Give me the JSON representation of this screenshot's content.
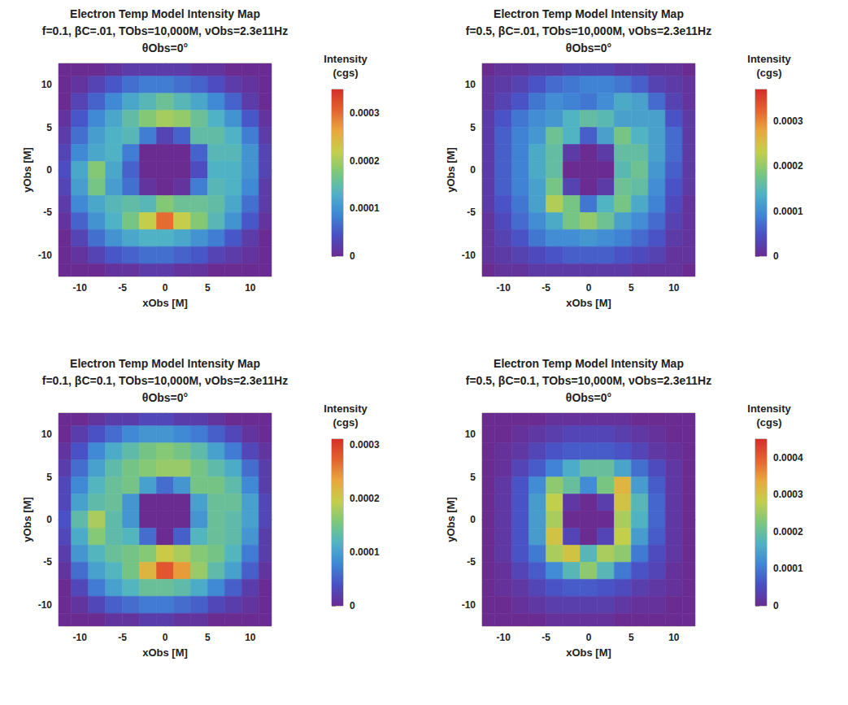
{
  "chart_data": [
    {
      "type": "heatmap",
      "title": "Electron Temp Model Intensity Map",
      "subtitle": "f=0.1, βC=.01, TObs=10,000M, νObs=2.3e11Hz",
      "panel_title": "θObs=0°",
      "x_label": "xObs [M]",
      "y_label": "yObs [M]",
      "xlim": [
        -12.5,
        12.5
      ],
      "ylim": [
        -12.5,
        12.5
      ],
      "xticks": [
        -10,
        -5,
        0,
        5,
        10
      ],
      "yticks": [
        -10,
        -5,
        0,
        5,
        10
      ],
      "x": [
        -12,
        -10,
        -8,
        -6,
        -4,
        -2,
        0,
        2,
        4,
        6,
        8,
        10,
        12
      ],
      "y": [
        12,
        10,
        8,
        6,
        4,
        2,
        0,
        -2,
        -4,
        -6,
        -8,
        -10,
        -12
      ],
      "cells": [
        [
          0,
          0,
          0,
          1e-05,
          2e-05,
          2e-05,
          2e-05,
          2e-05,
          1e-05,
          1e-05,
          0,
          0,
          0
        ],
        [
          0,
          1e-05,
          3e-05,
          5e-05,
          7e-05,
          8e-05,
          8e-05,
          7e-05,
          6e-05,
          4e-05,
          2e-05,
          1e-05,
          0
        ],
        [
          0,
          3e-05,
          6e-05,
          9e-05,
          0.00012,
          0.00014,
          0.00016,
          0.00014,
          0.00012,
          9e-05,
          6e-05,
          2e-05,
          0
        ],
        [
          1e-05,
          5e-05,
          9e-05,
          0.00012,
          0.00015,
          0.00018,
          0.0002,
          0.00019,
          0.00016,
          0.00013,
          0.0001,
          5e-05,
          1e-05
        ],
        [
          2e-05,
          7e-05,
          0.00011,
          0.00013,
          0.00014,
          8e-05,
          3e-05,
          6e-05,
          0.00015,
          0.00015,
          0.00013,
          8e-05,
          2e-05
        ],
        [
          3e-05,
          9e-05,
          0.00012,
          0.00013,
          8e-05,
          0,
          0,
          0,
          6e-05,
          0.00014,
          0.00014,
          0.0001,
          3e-05
        ],
        [
          4e-05,
          0.00012,
          0.00018,
          0.00012,
          6e-05,
          0,
          0,
          0,
          4e-05,
          0.00013,
          0.00013,
          0.0001,
          3e-05
        ],
        [
          3e-05,
          0.00011,
          0.00017,
          0.00011,
          7e-05,
          1e-05,
          0,
          1e-05,
          8e-05,
          0.00014,
          0.00013,
          9e-05,
          2e-05
        ],
        [
          2e-05,
          9e-05,
          0.00012,
          0.00014,
          0.00015,
          0.00014,
          0.00018,
          0.00016,
          0.00016,
          0.00015,
          0.00012,
          7e-05,
          2e-05
        ],
        [
          1e-05,
          6e-05,
          0.0001,
          0.00013,
          0.00017,
          0.00022,
          0.0003,
          0.00022,
          0.00018,
          0.00014,
          0.0001,
          5e-05,
          1e-05
        ],
        [
          0,
          3e-05,
          7e-05,
          0.0001,
          0.00012,
          0.00013,
          0.00013,
          0.00012,
          0.0001,
          8e-05,
          5e-05,
          2e-05,
          0
        ],
        [
          0,
          1e-05,
          3e-05,
          5e-05,
          6e-05,
          7e-05,
          7e-05,
          6e-05,
          5e-05,
          3e-05,
          2e-05,
          1e-05,
          0
        ],
        [
          0,
          0,
          0,
          1e-05,
          1e-05,
          2e-05,
          2e-05,
          1e-05,
          1e-05,
          0,
          0,
          0,
          0
        ]
      ],
      "colorbar": {
        "title": "Intensity (cgs)",
        "range": [
          0,
          0.00035
        ],
        "ticks": [
          0,
          0.0001,
          0.0002,
          0.0003
        ]
      }
    },
    {
      "type": "heatmap",
      "title": "Electron Temp Model Intensity Map",
      "subtitle": "f=0.5, βC=.01, TObs=10,000M, νObs=2.3e11Hz",
      "panel_title": "θObs=0°",
      "x_label": "xObs [M]",
      "y_label": "yObs [M]",
      "xlim": [
        -12.5,
        12.5
      ],
      "ylim": [
        -12.5,
        12.5
      ],
      "xticks": [
        -10,
        -5,
        0,
        5,
        10
      ],
      "yticks": [
        -10,
        -5,
        0,
        5,
        10
      ],
      "x": [
        -12,
        -10,
        -8,
        -6,
        -4,
        -2,
        0,
        2,
        4,
        6,
        8,
        10,
        12
      ],
      "y": [
        12,
        10,
        8,
        6,
        4,
        2,
        0,
        -2,
        -4,
        -6,
        -8,
        -10,
        -12
      ],
      "cells": [
        [
          0,
          1e-05,
          1e-05,
          2e-05,
          2e-05,
          3e-05,
          3e-05,
          3e-05,
          2e-05,
          2e-05,
          1e-05,
          1e-05,
          0
        ],
        [
          1e-05,
          2e-05,
          3e-05,
          5e-05,
          7e-05,
          8e-05,
          9e-05,
          9e-05,
          8e-05,
          6e-05,
          3e-05,
          2e-05,
          1e-05
        ],
        [
          1e-05,
          3e-05,
          5e-05,
          8e-05,
          0.0001,
          9e-05,
          8e-05,
          0.0001,
          0.00013,
          0.00012,
          7e-05,
          3e-05,
          1e-05
        ],
        [
          2e-05,
          5e-05,
          8e-05,
          0.0001,
          0.00011,
          0.00014,
          0.00016,
          0.00015,
          0.00012,
          0.00012,
          0.00012,
          5e-05,
          2e-05
        ],
        [
          2e-05,
          6e-05,
          9e-05,
          0.00011,
          0.00017,
          0.00014,
          6e-05,
          0.00012,
          0.00018,
          0.00014,
          0.00012,
          7e-05,
          2e-05
        ],
        [
          2e-05,
          6e-05,
          9e-05,
          0.00013,
          0.00016,
          2e-05,
          0,
          2e-05,
          0.00016,
          0.00016,
          0.00012,
          7e-05,
          2e-05
        ],
        [
          2e-05,
          6e-05,
          9e-05,
          0.00013,
          0.00016,
          0,
          0,
          0,
          0.00015,
          0.00017,
          0.00011,
          6e-05,
          2e-05
        ],
        [
          2e-05,
          6e-05,
          9e-05,
          0.00012,
          0.00018,
          3e-05,
          0,
          2e-05,
          0.00017,
          0.00016,
          0.0001,
          5e-05,
          2e-05
        ],
        [
          2e-05,
          5e-05,
          8e-05,
          0.00012,
          0.00022,
          0.00018,
          8e-05,
          0.00014,
          0.00018,
          0.00013,
          9e-05,
          4e-05,
          1e-05
        ],
        [
          1e-05,
          4e-05,
          7e-05,
          0.0001,
          0.00013,
          0.00018,
          0.0002,
          0.00017,
          0.00012,
          0.0001,
          7e-05,
          3e-05,
          1e-05
        ],
        [
          1e-05,
          3e-05,
          5e-05,
          8e-05,
          0.0001,
          0.0001,
          0.00011,
          0.0001,
          9e-05,
          7e-05,
          5e-05,
          2e-05,
          1e-05
        ],
        [
          1e-05,
          2e-05,
          3e-05,
          4e-05,
          5e-05,
          6e-05,
          6e-05,
          6e-05,
          5e-05,
          4e-05,
          3e-05,
          1e-05,
          1e-05
        ],
        [
          0,
          1e-05,
          1e-05,
          2e-05,
          2e-05,
          2e-05,
          2e-05,
          2e-05,
          2e-05,
          1e-05,
          1e-05,
          1e-05,
          0
        ]
      ],
      "colorbar": {
        "title": "Intensity (cgs)",
        "range": [
          0,
          0.00037
        ],
        "ticks": [
          0,
          0.0001,
          0.0002,
          0.0003
        ]
      }
    },
    {
      "type": "heatmap",
      "title": "Electron Temp Model Intensity Map",
      "subtitle": "f=0.1, βC=0.1, TObs=10,000M, νObs=2.3e11Hz",
      "panel_title": "θObs=0°",
      "x_label": "xObs [M]",
      "y_label": "yObs [M]",
      "xlim": [
        -12.5,
        12.5
      ],
      "ylim": [
        -12.5,
        12.5
      ],
      "xticks": [
        -10,
        -5,
        0,
        5,
        10
      ],
      "yticks": [
        -10,
        -5,
        0,
        5,
        10
      ],
      "x": [
        -12,
        -10,
        -8,
        -6,
        -4,
        -2,
        0,
        2,
        4,
        6,
        8,
        10,
        12
      ],
      "y": [
        12,
        10,
        8,
        6,
        4,
        2,
        0,
        -2,
        -4,
        -6,
        -8,
        -10,
        -12
      ],
      "cells": [
        [
          0,
          0,
          1e-05,
          2e-05,
          2e-05,
          3e-05,
          3e-05,
          2e-05,
          2e-05,
          1e-05,
          0,
          0,
          0
        ],
        [
          0,
          2e-05,
          4e-05,
          6e-05,
          8e-05,
          9e-05,
          9e-05,
          8e-05,
          7e-05,
          5e-05,
          3e-05,
          1e-05,
          0
        ],
        [
          1e-05,
          4e-05,
          8e-05,
          0.00011,
          0.00013,
          0.00015,
          0.00016,
          0.00015,
          0.00013,
          0.0001,
          7e-05,
          3e-05,
          1e-05
        ],
        [
          2e-05,
          6e-05,
          0.0001,
          0.00013,
          0.00015,
          0.00016,
          0.00017,
          0.00017,
          0.00015,
          0.00013,
          0.00011,
          6e-05,
          2e-05
        ],
        [
          3e-05,
          8e-05,
          0.00012,
          0.00014,
          0.00015,
          0.0001,
          6e-05,
          9e-05,
          0.00015,
          0.00015,
          0.00013,
          8e-05,
          2e-05
        ],
        [
          3e-05,
          0.0001,
          0.00013,
          0.00014,
          9e-05,
          0,
          0,
          0,
          0.0001,
          0.00014,
          0.00014,
          0.0001,
          3e-05
        ],
        [
          4e-05,
          0.00013,
          0.00018,
          0.00013,
          9e-05,
          0,
          0,
          0,
          9e-05,
          0.00014,
          0.00013,
          0.0001,
          3e-05
        ],
        [
          3e-05,
          0.00011,
          0.00016,
          0.00013,
          0.00012,
          6e-05,
          0,
          5e-05,
          0.00012,
          0.00014,
          0.00013,
          9e-05,
          2e-05
        ],
        [
          2e-05,
          9e-05,
          0.00012,
          0.00014,
          0.00015,
          0.00016,
          0.0002,
          0.00018,
          0.00016,
          0.00015,
          0.00012,
          7e-05,
          2e-05
        ],
        [
          1e-05,
          6e-05,
          0.0001,
          0.00012,
          0.00015,
          0.00022,
          0.00028,
          0.00024,
          0.00017,
          0.00013,
          0.0001,
          5e-05,
          1e-05
        ],
        [
          0,
          3e-05,
          7e-05,
          0.0001,
          0.00012,
          0.00014,
          0.00014,
          0.00013,
          0.00011,
          8e-05,
          5e-05,
          2e-05,
          0
        ],
        [
          0,
          1e-05,
          3e-05,
          5e-05,
          6e-05,
          7e-05,
          7e-05,
          6e-05,
          5e-05,
          3e-05,
          2e-05,
          1e-05,
          0
        ],
        [
          0,
          0,
          0,
          1e-05,
          1e-05,
          2e-05,
          2e-05,
          1e-05,
          1e-05,
          0,
          0,
          0,
          0
        ]
      ],
      "colorbar": {
        "title": "Intensity (cgs)",
        "range": [
          0,
          0.00031
        ],
        "ticks": [
          0,
          0.0001,
          0.0002,
          0.0003
        ]
      }
    },
    {
      "type": "heatmap",
      "title": "Electron Temp Model Intensity Map",
      "subtitle": "f=0.5, βC=0.1, TObs=10,000M, νObs=2.3e11Hz",
      "panel_title": "θObs=0°",
      "x_label": "xObs [M]",
      "y_label": "yObs [M]",
      "xlim": [
        -12.5,
        12.5
      ],
      "ylim": [
        -12.5,
        12.5
      ],
      "xticks": [
        -10,
        -5,
        0,
        5,
        10
      ],
      "yticks": [
        -10,
        -5,
        0,
        5,
        10
      ],
      "x": [
        -12,
        -10,
        -8,
        -6,
        -4,
        -2,
        0,
        2,
        4,
        6,
        8,
        10,
        12
      ],
      "y": [
        12,
        10,
        8,
        6,
        4,
        2,
        0,
        -2,
        -4,
        -6,
        -8,
        -10,
        -12
      ],
      "cells": [
        [
          0,
          0,
          0,
          0,
          1e-05,
          1e-05,
          1e-05,
          1e-05,
          1e-05,
          0,
          0,
          0,
          0
        ],
        [
          0,
          0,
          1e-05,
          2e-05,
          3e-05,
          4e-05,
          4e-05,
          4e-05,
          3e-05,
          2e-05,
          1e-05,
          0,
          0
        ],
        [
          0,
          1e-05,
          2e-05,
          4e-05,
          6e-05,
          7e-05,
          7e-05,
          7e-05,
          6e-05,
          4e-05,
          2e-05,
          1e-05,
          0
        ],
        [
          0,
          1e-05,
          4e-05,
          7e-05,
          0.00011,
          0.00016,
          0.0002,
          0.0002,
          0.00015,
          9e-05,
          5e-05,
          2e-05,
          0
        ],
        [
          0,
          2e-05,
          6e-05,
          0.00012,
          0.00024,
          0.0002,
          0.00012,
          0.00022,
          0.00032,
          0.00014,
          7e-05,
          2e-05,
          0
        ],
        [
          0,
          2e-05,
          6e-05,
          0.00014,
          0.00028,
          2e-05,
          0,
          3e-05,
          0.0003,
          0.00018,
          8e-05,
          2e-05,
          0
        ],
        [
          0,
          2e-05,
          6e-05,
          0.00014,
          0.00026,
          0,
          0,
          0,
          0.00026,
          0.00017,
          8e-05,
          2e-05,
          0
        ],
        [
          0,
          2e-05,
          6e-05,
          0.00014,
          0.0003,
          4e-05,
          0,
          4e-05,
          0.00028,
          0.00014,
          7e-05,
          2e-05,
          0
        ],
        [
          0,
          2e-05,
          6e-05,
          0.0001,
          0.00026,
          0.0003,
          0.00018,
          0.00026,
          0.00024,
          0.0001,
          5e-05,
          2e-05,
          0
        ],
        [
          0,
          1e-05,
          4e-05,
          7e-05,
          0.00012,
          0.00018,
          0.00024,
          0.00018,
          0.0001,
          6e-05,
          4e-05,
          1e-05,
          0
        ],
        [
          0,
          1e-05,
          2e-05,
          4e-05,
          6e-05,
          7e-05,
          7e-05,
          6e-05,
          5e-05,
          3e-05,
          2e-05,
          1e-05,
          0
        ],
        [
          0,
          0,
          1e-05,
          2e-05,
          3e-05,
          3e-05,
          3e-05,
          3e-05,
          2e-05,
          1e-05,
          1e-05,
          0,
          0
        ],
        [
          0,
          0,
          0,
          0,
          1e-05,
          1e-05,
          1e-05,
          1e-05,
          0,
          0,
          0,
          0,
          0
        ]
      ],
      "colorbar": {
        "title": "Intensity (cgs)",
        "range": [
          0,
          0.00045
        ],
        "ticks": [
          0,
          0.0001,
          0.0002,
          0.0003,
          0.0004
        ]
      }
    }
  ]
}
